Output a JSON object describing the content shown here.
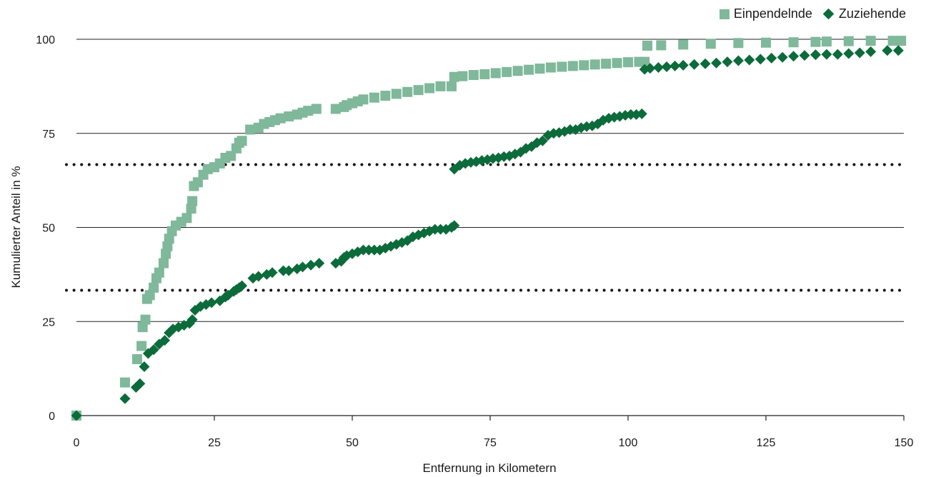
{
  "chart_data": {
    "type": "scatter",
    "xlabel": "Entfernung in Kilometern",
    "ylabel": "Kumulierter Anteil in %",
    "xlim": [
      0,
      150
    ],
    "ylim": [
      0,
      100
    ],
    "xticks": [
      0,
      25,
      50,
      75,
      100,
      125,
      150
    ],
    "yticks": [
      0,
      25,
      50,
      75,
      100
    ],
    "grid": "horizontal",
    "legend_position": "top-right",
    "reference_lines": [
      33.3,
      66.7
    ],
    "series": [
      {
        "name": "Einpendelnde",
        "marker": "square",
        "color": "#7fb89a",
        "points": [
          [
            0,
            0
          ],
          [
            8.8,
            8.8
          ],
          [
            11,
            15
          ],
          [
            11.8,
            18.5
          ],
          [
            12,
            23.5
          ],
          [
            12.5,
            25.5
          ],
          [
            12.8,
            31
          ],
          [
            13.3,
            32
          ],
          [
            14,
            34
          ],
          [
            14.5,
            36.5
          ],
          [
            15,
            38
          ],
          [
            15.8,
            40.5
          ],
          [
            16.2,
            43
          ],
          [
            16.5,
            45
          ],
          [
            16.8,
            47
          ],
          [
            17.3,
            49
          ],
          [
            18,
            50.5
          ],
          [
            19,
            51.5
          ],
          [
            20,
            52.5
          ],
          [
            20.8,
            55
          ],
          [
            21,
            57
          ],
          [
            21.3,
            61
          ],
          [
            22,
            62
          ],
          [
            23,
            64
          ],
          [
            23.8,
            65.5
          ],
          [
            25,
            66
          ],
          [
            26,
            67
          ],
          [
            27,
            68.5
          ],
          [
            28,
            69
          ],
          [
            29,
            71
          ],
          [
            29.5,
            72.5
          ],
          [
            30,
            73
          ],
          [
            31.5,
            76
          ],
          [
            33,
            76.5
          ],
          [
            34,
            77.5
          ],
          [
            35,
            78
          ],
          [
            36,
            78.5
          ],
          [
            37,
            79
          ],
          [
            38.5,
            79.5
          ],
          [
            40,
            80
          ],
          [
            41,
            80.5
          ],
          [
            42,
            81
          ],
          [
            43.5,
            81.5
          ],
          [
            47,
            81.5
          ],
          [
            48.5,
            82
          ],
          [
            49,
            82.5
          ],
          [
            50,
            83
          ],
          [
            51,
            83.5
          ],
          [
            52,
            84
          ],
          [
            54,
            84.5
          ],
          [
            56,
            85
          ],
          [
            58,
            85.5
          ],
          [
            60,
            86
          ],
          [
            62,
            86.5
          ],
          [
            64,
            87
          ],
          [
            66,
            87.5
          ],
          [
            68,
            87.5
          ],
          [
            68.5,
            90
          ],
          [
            70,
            90.2
          ],
          [
            72,
            90.5
          ],
          [
            74,
            90.7
          ],
          [
            76,
            91
          ],
          [
            78,
            91.3
          ],
          [
            80,
            91.6
          ],
          [
            82,
            91.9
          ],
          [
            84,
            92.2
          ],
          [
            86,
            92.5
          ],
          [
            88,
            92.7
          ],
          [
            90,
            92.9
          ],
          [
            92,
            93.1
          ],
          [
            94,
            93.3
          ],
          [
            96,
            93.5
          ],
          [
            98,
            93.7
          ],
          [
            100,
            93.9
          ],
          [
            102,
            94
          ],
          [
            103,
            94
          ],
          [
            103.5,
            98.3
          ],
          [
            106,
            98.4
          ],
          [
            110,
            98.6
          ],
          [
            115,
            98.8
          ],
          [
            120,
            99
          ],
          [
            125,
            99.1
          ],
          [
            130,
            99.2
          ],
          [
            134,
            99.3
          ],
          [
            136,
            99.4
          ],
          [
            140,
            99.5
          ],
          [
            144,
            99.6
          ],
          [
            148,
            99.6
          ],
          [
            149.5,
            99.6
          ]
        ]
      },
      {
        "name": "Zuziehende",
        "marker": "diamond",
        "color": "#0c6b3a",
        "points": [
          [
            0,
            0
          ],
          [
            8.8,
            4.5
          ],
          [
            10.8,
            7.5
          ],
          [
            11.5,
            8.5
          ],
          [
            12.3,
            13
          ],
          [
            13,
            16.5
          ],
          [
            14,
            17.5
          ],
          [
            15,
            19
          ],
          [
            16,
            20
          ],
          [
            16.8,
            22
          ],
          [
            17.5,
            23
          ],
          [
            18.5,
            23.5
          ],
          [
            19.5,
            24
          ],
          [
            20.5,
            24.5
          ],
          [
            21,
            25.5
          ],
          [
            21.5,
            28
          ],
          [
            22.5,
            29
          ],
          [
            23.5,
            29.5
          ],
          [
            24.5,
            30
          ],
          [
            26,
            30.5
          ],
          [
            27,
            31.5
          ],
          [
            27.5,
            32
          ],
          [
            28.5,
            33
          ],
          [
            29,
            33.5
          ],
          [
            29.5,
            34
          ],
          [
            30,
            34.5
          ],
          [
            32,
            36.5
          ],
          [
            33,
            37
          ],
          [
            34.5,
            37.5
          ],
          [
            35.5,
            38
          ],
          [
            37.5,
            38.5
          ],
          [
            38.5,
            38.5
          ],
          [
            40,
            39
          ],
          [
            41,
            39.5
          ],
          [
            42.5,
            40
          ],
          [
            44,
            40.5
          ],
          [
            47,
            40.5
          ],
          [
            48,
            41
          ],
          [
            48.5,
            42
          ],
          [
            49,
            42.5
          ],
          [
            50,
            43
          ],
          [
            51,
            43.5
          ],
          [
            52,
            44
          ],
          [
            53,
            44
          ],
          [
            54,
            44
          ],
          [
            55,
            44
          ],
          [
            56,
            44.5
          ],
          [
            57,
            45
          ],
          [
            58,
            45.5
          ],
          [
            59,
            46
          ],
          [
            60,
            46.5
          ],
          [
            61,
            47.5
          ],
          [
            62,
            48
          ],
          [
            63,
            48.5
          ],
          [
            64,
            49
          ],
          [
            65,
            49.5
          ],
          [
            66,
            49.5
          ],
          [
            67,
            49.5
          ],
          [
            68,
            50
          ],
          [
            68.5,
            50.5
          ],
          [
            68.5,
            65.5
          ],
          [
            69.5,
            66.5
          ],
          [
            70.5,
            67
          ],
          [
            71.5,
            67.3
          ],
          [
            72.5,
            67.5
          ],
          [
            73.5,
            67.8
          ],
          [
            74.5,
            68
          ],
          [
            75.5,
            68.3
          ],
          [
            76.5,
            68.5
          ],
          [
            77.5,
            68.8
          ],
          [
            78.5,
            69
          ],
          [
            79.5,
            69.5
          ],
          [
            80.5,
            70
          ],
          [
            81.5,
            71
          ],
          [
            82.5,
            71.5
          ],
          [
            83.5,
            72.5
          ],
          [
            84.5,
            73
          ],
          [
            85.5,
            74.5
          ],
          [
            86.5,
            75
          ],
          [
            87.5,
            75.2
          ],
          [
            88.5,
            75.5
          ],
          [
            89.5,
            76
          ],
          [
            90.5,
            76
          ],
          [
            91.5,
            76.5
          ],
          [
            92.5,
            76.8
          ],
          [
            93.5,
            77
          ],
          [
            94.5,
            77.5
          ],
          [
            95.5,
            78.5
          ],
          [
            96.5,
            79
          ],
          [
            97.5,
            79.3
          ],
          [
            98.5,
            79.5
          ],
          [
            99.5,
            79.8
          ],
          [
            100.5,
            80
          ],
          [
            101.5,
            80
          ],
          [
            102.5,
            80.2
          ],
          [
            103,
            92
          ],
          [
            104,
            92.3
          ],
          [
            105.5,
            92.5
          ],
          [
            107,
            92.7
          ],
          [
            108.5,
            92.9
          ],
          [
            110,
            93.1
          ],
          [
            112,
            93.3
          ],
          [
            114,
            93.5
          ],
          [
            116,
            93.7
          ],
          [
            118,
            94
          ],
          [
            120,
            94.3
          ],
          [
            122,
            94.5
          ],
          [
            124,
            94.7
          ],
          [
            126,
            95
          ],
          [
            128,
            95.2
          ],
          [
            130,
            95.5
          ],
          [
            132,
            95.7
          ],
          [
            134,
            95.9
          ],
          [
            136,
            96
          ],
          [
            138,
            96
          ],
          [
            140,
            96.2
          ],
          [
            142,
            96.4
          ],
          [
            144,
            96.7
          ],
          [
            147,
            97
          ],
          [
            149,
            97
          ]
        ]
      }
    ]
  }
}
